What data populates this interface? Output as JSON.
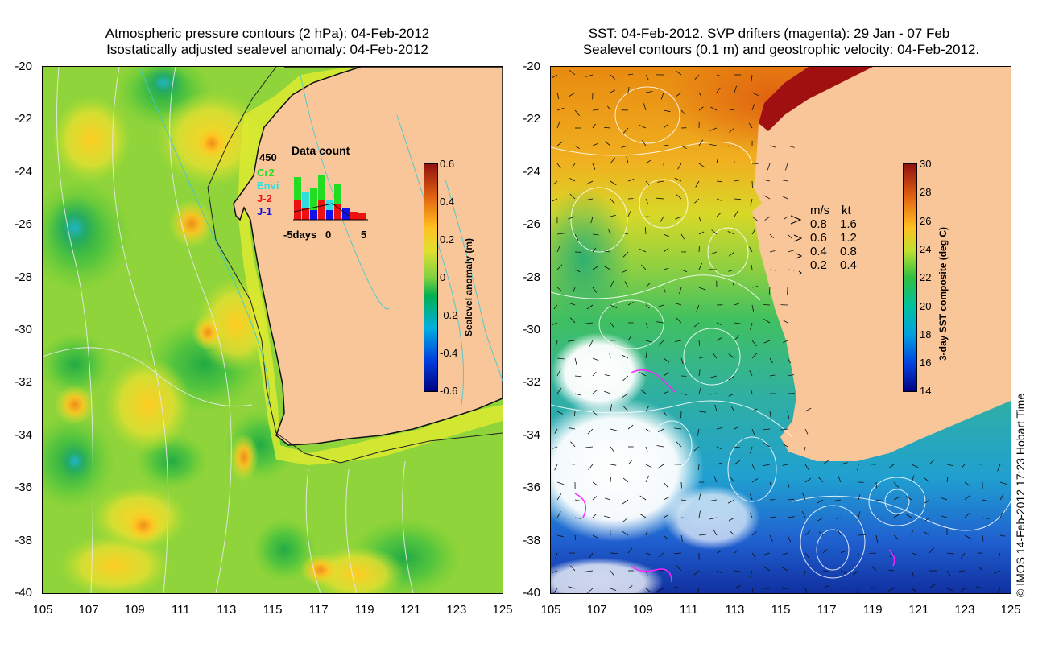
{
  "left_panel": {
    "title_line1": "Atmospheric pressure contours (2 hPa): 04-Feb-2012",
    "title_line2": "Isostatically adjusted sealevel anomaly: 04-Feb-2012",
    "y_ticks": [
      "-20",
      "-22",
      "-24",
      "-26",
      "-28",
      "-30",
      "-32",
      "-34",
      "-36",
      "-38",
      "-40"
    ],
    "x_ticks": [
      "105",
      "107",
      "109",
      "111",
      "113",
      "115",
      "117",
      "119",
      "121",
      "123",
      "125"
    ],
    "colorbar": {
      "label": "Sealevel anomaly (m)",
      "ticks": [
        "0.6",
        "0.4",
        "0.2",
        "0",
        "-0.2",
        "-0.4",
        "-0.6"
      ]
    },
    "data_count": {
      "title": "Data count",
      "max_label": "450",
      "missions": [
        {
          "name": "Cr2",
          "color": "#22dd22"
        },
        {
          "name": "Envi",
          "color": "#33dddd"
        },
        {
          "name": "J-2",
          "color": "#ee1111"
        },
        {
          "name": "J-1",
          "color": "#1111ee"
        }
      ],
      "x_labels": [
        "-5days",
        "0",
        "5"
      ]
    }
  },
  "right_panel": {
    "title_line1": "SST: 04-Feb-2012. SVP drifters (magenta): 29 Jan - 07 Feb",
    "title_line2": "Sealevel contours (0.1 m) and geostrophic velocity: 04-Feb-2012.",
    "y_ticks": [
      "-20",
      "-22",
      "-24",
      "-26",
      "-28",
      "-30",
      "-32",
      "-34",
      "-36",
      "-38",
      "-40"
    ],
    "x_ticks": [
      "105",
      "107",
      "109",
      "111",
      "113",
      "115",
      "117",
      "119",
      "121",
      "123",
      "125"
    ],
    "colorbar": {
      "label": "3-day SST composite (deg C)",
      "ticks": [
        "30",
        "28",
        "26",
        "24",
        "22",
        "20",
        "18",
        "16",
        "14"
      ]
    },
    "velocity_legend": {
      "header_ms": "m/s",
      "header_kt": "kt",
      "rows": [
        {
          "ms": "0.8",
          "kt": "1.6"
        },
        {
          "ms": "0.6",
          "kt": "1.2"
        },
        {
          "ms": "0.4",
          "kt": "0.8"
        },
        {
          "ms": "0.2",
          "kt": "0.4"
        }
      ]
    }
  },
  "copyright": "© IMOS 14-Feb-2012 17:23 Hobart Time",
  "colors": {
    "land": "#f9c69a",
    "sla_zero": "#8fd43a",
    "coast": "#111111"
  }
}
